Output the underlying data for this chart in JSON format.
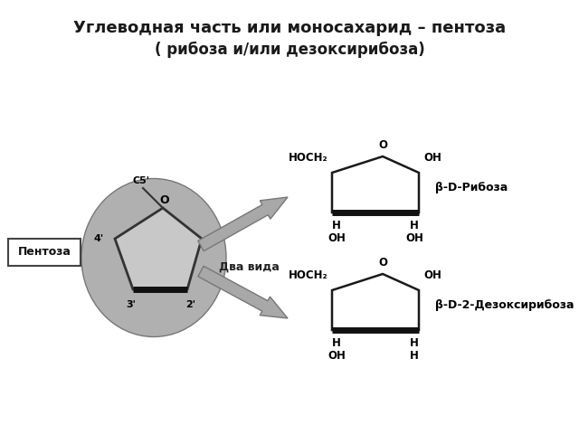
{
  "title_line1": "Углеводная часть или моносахарид – пентоза",
  "title_line2": "( рибоза и/или дезоксирибоза)",
  "bg_color": "#ffffff",
  "text_color": "#1a1a1a",
  "gray_ellipse": "#b0b0b0",
  "ring_face": "#c8c8c8",
  "ring_edge": "#333333",
  "arrow_color": "#999999",
  "arrow_edge": "#555555",
  "label_pentoza": "Пентоза",
  "label_dva_vida": "Два вида",
  "label_riboza": "β-D-Рибоза",
  "label_deoxyriboza": "β-D-2-Дезоксирибоза"
}
